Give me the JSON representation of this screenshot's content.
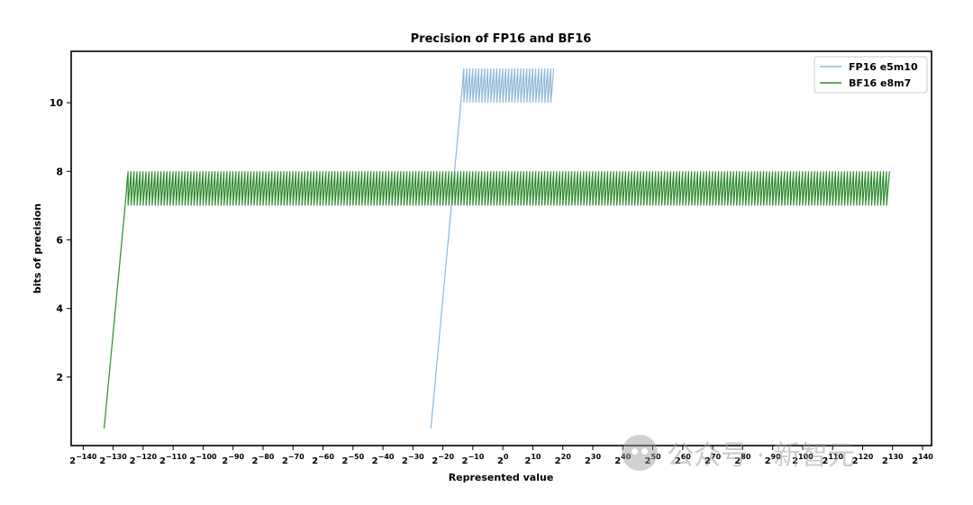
{
  "chart_data": {
    "type": "line",
    "title": "Precision of FP16 and BF16",
    "xlabel": "Represented value",
    "ylabel": "bits of precision",
    "x_scale": "log2",
    "xlim_exp": [
      -144,
      143
    ],
    "ylim": [
      0,
      11.5
    ],
    "yticks": [
      2,
      4,
      6,
      8,
      10
    ],
    "xticks": [
      {
        "base": "2",
        "exp": "−140",
        "value_exp": -140
      },
      {
        "base": "2",
        "exp": "−130",
        "value_exp": -130
      },
      {
        "base": "2",
        "exp": "−120",
        "value_exp": -120
      },
      {
        "base": "2",
        "exp": "−110",
        "value_exp": -110
      },
      {
        "base": "2",
        "exp": "−100",
        "value_exp": -100
      },
      {
        "base": "2",
        "exp": "−90",
        "value_exp": -90
      },
      {
        "base": "2",
        "exp": "−80",
        "value_exp": -80
      },
      {
        "base": "2",
        "exp": "−70",
        "value_exp": -70
      },
      {
        "base": "2",
        "exp": "−60",
        "value_exp": -60
      },
      {
        "base": "2",
        "exp": "−50",
        "value_exp": -50
      },
      {
        "base": "2",
        "exp": "−40",
        "value_exp": -40
      },
      {
        "base": "2",
        "exp": "−30",
        "value_exp": -30
      },
      {
        "base": "2",
        "exp": "−20",
        "value_exp": -20
      },
      {
        "base": "2",
        "exp": "−10",
        "value_exp": -10
      },
      {
        "base": "2",
        "exp": "0",
        "value_exp": 0
      },
      {
        "base": "2",
        "exp": "10",
        "value_exp": 10
      },
      {
        "base": "2",
        "exp": "20",
        "value_exp": 20
      },
      {
        "base": "2",
        "exp": "30",
        "value_exp": 30
      },
      {
        "base": "2",
        "exp": "40",
        "value_exp": 40
      },
      {
        "base": "2",
        "exp": "50",
        "value_exp": 50
      },
      {
        "base": "2",
        "exp": "60",
        "value_exp": 60
      },
      {
        "base": "2",
        "exp": "70",
        "value_exp": 70
      },
      {
        "base": "2",
        "exp": "80",
        "value_exp": 80
      },
      {
        "base": "2",
        "exp": "90",
        "value_exp": 90
      },
      {
        "base": "2",
        "exp": "100",
        "value_exp": 100
      },
      {
        "base": "2",
        "exp": "110",
        "value_exp": 110
      },
      {
        "base": "2",
        "exp": "120",
        "value_exp": 120
      },
      {
        "base": "2",
        "exp": "130",
        "value_exp": 130
      },
      {
        "base": "2",
        "exp": "140",
        "value_exp": 140
      }
    ],
    "legend_position": "top-right",
    "series": [
      {
        "name": "FP16 e5m10",
        "color": "#8fb8d8",
        "subnormal_ramp": {
          "from_exp": -24,
          "to_exp": -14,
          "from_bits": 0.5,
          "to_bits": 10
        },
        "oscillation": {
          "from_exp": -14,
          "to_exp": 16,
          "low": 10,
          "high": 11
        }
      },
      {
        "name": "BF16 e8m7",
        "color": "#2e8b2e",
        "subnormal_ramp": {
          "from_exp": -133,
          "to_exp": -126,
          "from_bits": 0.5,
          "to_bits": 7
        },
        "oscillation": {
          "from_exp": -126,
          "to_exp": 128,
          "low": 7,
          "high": 8
        }
      }
    ]
  },
  "watermark": {
    "text": "公众号 · 新智元",
    "icon": "wechat-icon"
  }
}
